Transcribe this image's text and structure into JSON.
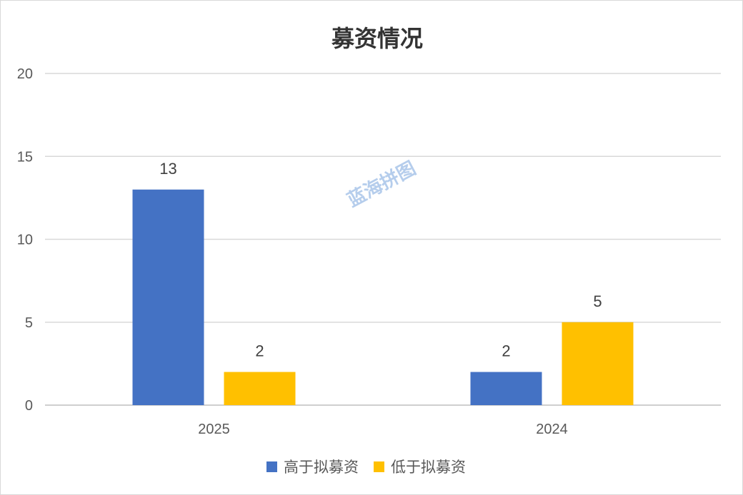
{
  "chart_data": {
    "type": "bar",
    "title": "募资情况",
    "categories": [
      "2025",
      "2024"
    ],
    "series": [
      {
        "name": "高于拟募资",
        "values": [
          13,
          2
        ],
        "color": "#4472c4"
      },
      {
        "name": "低于拟募资",
        "values": [
          2,
          5
        ],
        "color": "#ffc000"
      }
    ],
    "ylim": [
      0,
      20
    ],
    "yticks": [
      0,
      5,
      10,
      15,
      20
    ],
    "grid": true,
    "legend_position": "bottom",
    "data_labels": true
  },
  "watermark": "蓝海拼图"
}
